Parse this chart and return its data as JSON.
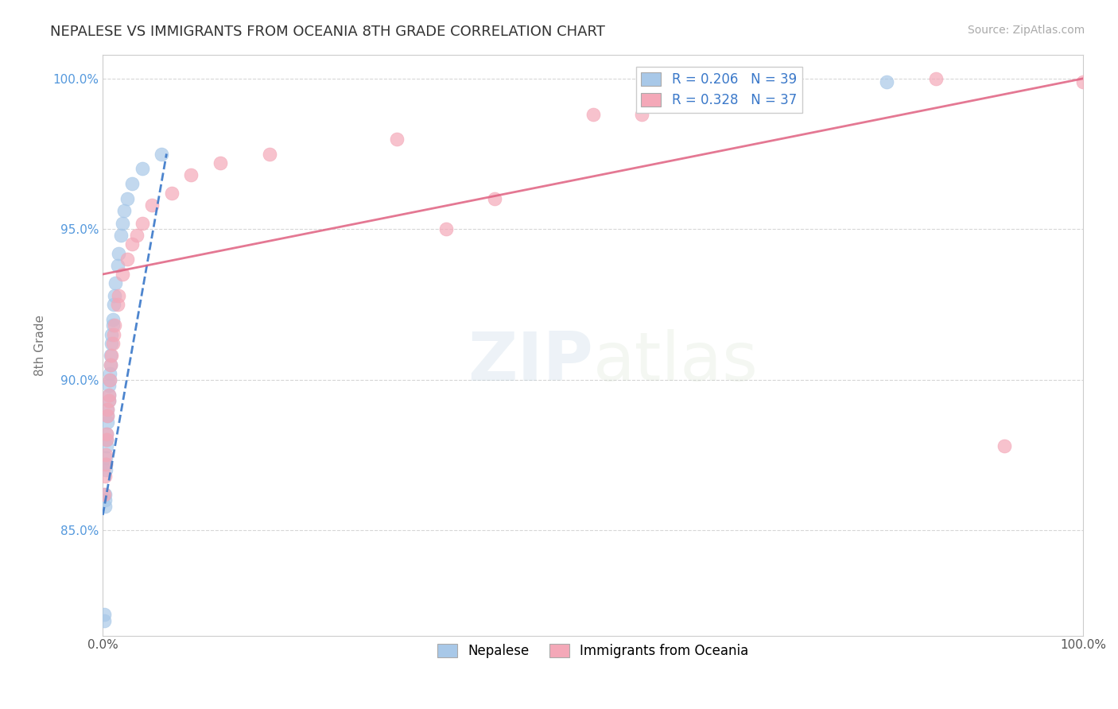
{
  "title": "NEPALESE VS IMMIGRANTS FROM OCEANIA 8TH GRADE CORRELATION CHART",
  "source": "Source: ZipAtlas.com",
  "ylabel": "8th Grade",
  "xlim": [
    0.0,
    1.0
  ],
  "ylim": [
    0.815,
    1.008
  ],
  "y_ticks": [
    0.85,
    0.9,
    0.95,
    1.0
  ],
  "y_tick_labels": [
    "85.0%",
    "90.0%",
    "95.0%",
    "100.0%"
  ],
  "blue_color": "#a8c8e8",
  "pink_color": "#f4a8b8",
  "blue_line_color": "#3a78c9",
  "pink_line_color": "#e06080",
  "legend_label1": "Nepalese",
  "legend_label2": "Immigrants from Oceania",
  "blue_x": [
    0.001,
    0.001,
    0.002,
    0.002,
    0.002,
    0.003,
    0.003,
    0.003,
    0.004,
    0.004,
    0.004,
    0.005,
    0.005,
    0.005,
    0.006,
    0.006,
    0.006,
    0.007,
    0.007,
    0.008,
    0.008,
    0.009,
    0.009,
    0.01,
    0.01,
    0.011,
    0.012,
    0.013,
    0.015,
    0.016,
    0.018,
    0.02,
    0.022,
    0.025,
    0.03,
    0.04,
    0.06,
    0.62,
    0.8
  ],
  "blue_y": [
    0.82,
    0.822,
    0.858,
    0.86,
    0.862,
    0.87,
    0.872,
    0.874,
    0.878,
    0.88,
    0.882,
    0.886,
    0.888,
    0.89,
    0.893,
    0.895,
    0.898,
    0.9,
    0.902,
    0.905,
    0.908,
    0.912,
    0.915,
    0.918,
    0.92,
    0.925,
    0.928,
    0.932,
    0.938,
    0.942,
    0.948,
    0.952,
    0.956,
    0.96,
    0.965,
    0.97,
    0.975,
    1.0,
    0.999
  ],
  "pink_x": [
    0.001,
    0.002,
    0.003,
    0.003,
    0.004,
    0.004,
    0.005,
    0.005,
    0.006,
    0.006,
    0.007,
    0.008,
    0.009,
    0.01,
    0.011,
    0.012,
    0.015,
    0.016,
    0.02,
    0.025,
    0.03,
    0.035,
    0.04,
    0.05,
    0.07,
    0.09,
    0.12,
    0.17,
    0.3,
    0.5,
    0.62,
    0.85,
    0.92,
    1.0,
    0.35,
    0.4,
    0.55
  ],
  "pink_y": [
    0.862,
    0.868,
    0.872,
    0.875,
    0.88,
    0.882,
    0.888,
    0.89,
    0.893,
    0.895,
    0.9,
    0.905,
    0.908,
    0.912,
    0.915,
    0.918,
    0.925,
    0.928,
    0.935,
    0.94,
    0.945,
    0.948,
    0.952,
    0.958,
    0.962,
    0.968,
    0.972,
    0.975,
    0.98,
    0.988,
    0.995,
    1.0,
    0.878,
    0.999,
    0.95,
    0.96,
    0.988
  ],
  "background_color": "#ffffff",
  "grid_color": "#cccccc"
}
